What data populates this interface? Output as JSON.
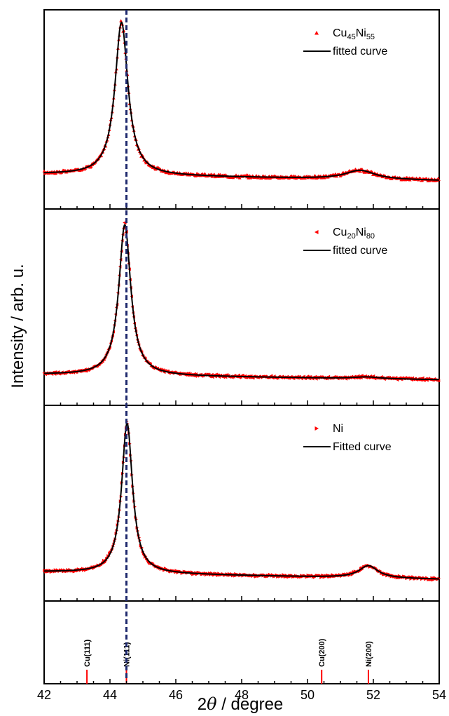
{
  "chart_data": {
    "type": "scatter",
    "xlabel_parts": [
      "2",
      "θ",
      " / degree"
    ],
    "ylabel": "Intensity / arb. u.",
    "xlim": [
      42,
      54
    ],
    "xticks": [
      "42",
      "44",
      "46",
      "48",
      "50",
      "52",
      "54"
    ],
    "dashed_line_x": 44.5,
    "line_color": "#000000",
    "marker_color": "#ff0000",
    "dashed_color": "#1f2a6e",
    "panels": [
      {
        "id": "cu45ni55",
        "legend": [
          {
            "marker": "triangle-up",
            "parts": [
              {
                "t": "Cu"
              },
              {
                "t": "45",
                "sub": true
              },
              {
                "t": "Ni"
              },
              {
                "t": "55",
                "sub": true
              }
            ]
          },
          {
            "marker": "line",
            "parts": [
              {
                "t": "fitted curve"
              }
            ]
          }
        ],
        "baseline": 0.14,
        "slope": -0.003,
        "peaks": [
          {
            "pos": 44.35,
            "amp": 0.86,
            "width": 0.24
          },
          {
            "pos": 51.6,
            "amp": 0.05,
            "width": 0.55
          }
        ]
      },
      {
        "id": "cu20ni80",
        "legend": [
          {
            "marker": "triangle-left",
            "parts": [
              {
                "t": "Cu"
              },
              {
                "t": "20",
                "sub": true
              },
              {
                "t": "Ni"
              },
              {
                "t": "80",
                "sub": true
              }
            ]
          },
          {
            "marker": "line",
            "parts": [
              {
                "t": "fitted curve"
              }
            ]
          }
        ],
        "baseline": 0.12,
        "slope": -0.0025,
        "peaks": [
          {
            "pos": 44.45,
            "amp": 0.86,
            "width": 0.22
          },
          {
            "pos": 51.8,
            "amp": 0.01,
            "width": 0.5
          }
        ]
      },
      {
        "id": "ni",
        "legend": [
          {
            "marker": "triangle-right",
            "parts": [
              {
                "t": "Ni"
              }
            ]
          },
          {
            "marker": "line",
            "parts": [
              {
                "t": "Fitted curve"
              }
            ]
          }
        ],
        "baseline": 0.11,
        "slope": -0.0035,
        "peaks": [
          {
            "pos": 44.52,
            "amp": 0.86,
            "width": 0.2
          },
          {
            "pos": 51.85,
            "amp": 0.07,
            "width": 0.35
          }
        ]
      }
    ],
    "reference_lines": [
      {
        "label": "Cu(111)",
        "x": 43.3,
        "color": "#ff0000"
      },
      {
        "label": "Ni(111)",
        "x": 44.5,
        "color": "#ff0000"
      },
      {
        "label": "Cu(200)",
        "x": 50.43,
        "color": "#ff0000"
      },
      {
        "label": "Ni(200)",
        "x": 51.85,
        "color": "#ff0000"
      }
    ]
  }
}
